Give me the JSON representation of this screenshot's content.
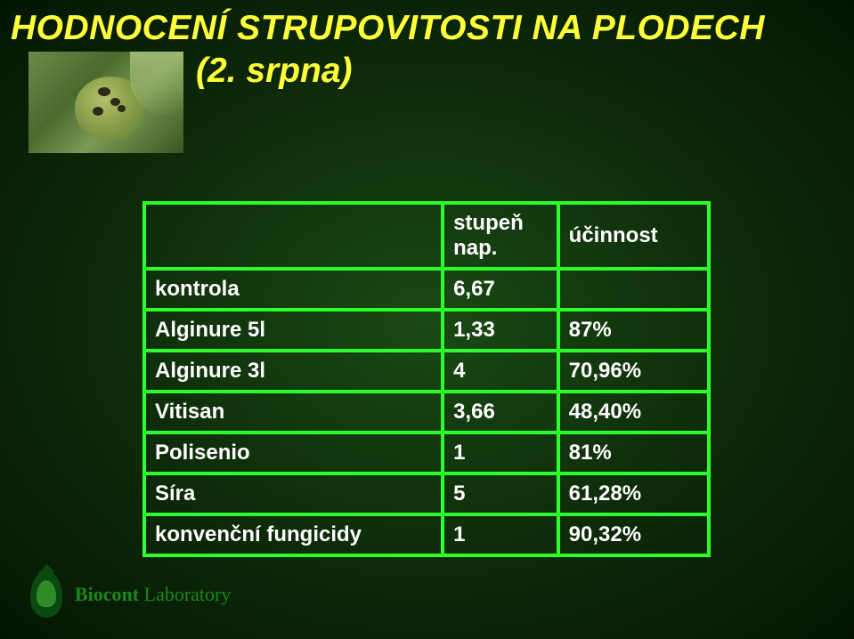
{
  "title_line1": "HODNOCENÍ STRUPOVITOSTI NA PLODECH",
  "title_line2": "(2. srpna)",
  "table": {
    "header": {
      "label": "",
      "val": "stupeň nap.",
      "eff": "účinnost"
    },
    "rows": [
      {
        "label": "kontrola",
        "val": "6,67",
        "eff": ""
      },
      {
        "label": "Alginure 5l",
        "val": "1,33",
        "eff": "87%"
      },
      {
        "label": "Alginure 3l",
        "val": "4",
        "eff": "70,96%"
      },
      {
        "label": "Vitisan",
        "val": "3,66",
        "eff": "48,40%"
      },
      {
        "label": "Polisenio",
        "val": "1",
        "eff": "81%"
      },
      {
        "label": "Síra",
        "val": "5",
        "eff": "61,28%"
      },
      {
        "label": "konvenční fungicidy",
        "val": "1",
        "eff": "90,32%"
      }
    ]
  },
  "footer": {
    "brand": "Biocont",
    "suffix": "Laboratory"
  },
  "colors": {
    "title": "#ffff3a",
    "border": "#2dff2d",
    "text": "#ffffff",
    "brand": "#1a8a1a"
  }
}
